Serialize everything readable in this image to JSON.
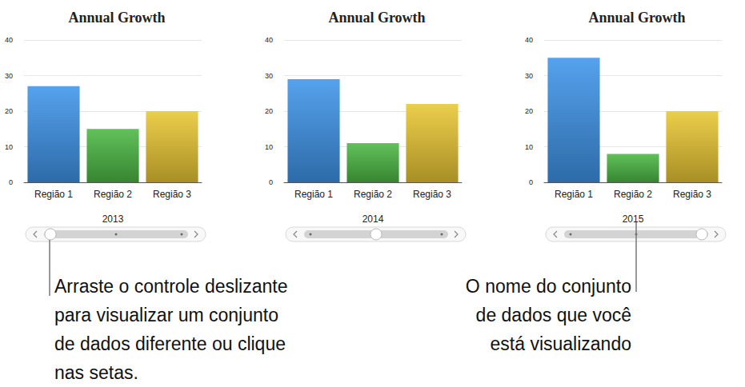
{
  "chart_data": [
    {
      "type": "bar",
      "title": "Annual Growth",
      "categories": [
        "Região 1",
        "Região 2",
        "Região 3"
      ],
      "values": [
        27,
        15,
        20
      ],
      "colors": [
        "#3f95ea",
        "#4cb944",
        "#e9c734"
      ],
      "xlabel": "2013",
      "ylim": [
        0,
        40
      ],
      "yticks": [
        0,
        10,
        20,
        30,
        40
      ],
      "grid": true,
      "annotation": "Arraste o controle deslizante\npara visualizar um conjunto\nde dados diferente ou clique\nnas setas."
    },
    {
      "type": "bar",
      "title": "Annual Growth",
      "categories": [
        "Região 1",
        "Região 2",
        "Região 3"
      ],
      "values": [
        29,
        11,
        22
      ],
      "colors": [
        "#3f95ea",
        "#4cb944",
        "#e9c734"
      ],
      "xlabel": "2014",
      "ylim": [
        0,
        40
      ],
      "yticks": [
        0,
        10,
        20,
        30,
        40
      ],
      "grid": true
    },
    {
      "type": "bar",
      "title": "Annual Growth",
      "categories": [
        "Região 1",
        "Região 2",
        "Região 3"
      ],
      "values": [
        35,
        8,
        20
      ],
      "colors": [
        "#3f95ea",
        "#4cb944",
        "#e9c734"
      ],
      "xlabel": "2015",
      "ylim": [
        0,
        40
      ],
      "yticks": [
        0,
        10,
        20,
        30,
        40
      ],
      "grid": true,
      "annotation": "O nome do conjunto\nde dados que você\nestá visualizando"
    }
  ]
}
